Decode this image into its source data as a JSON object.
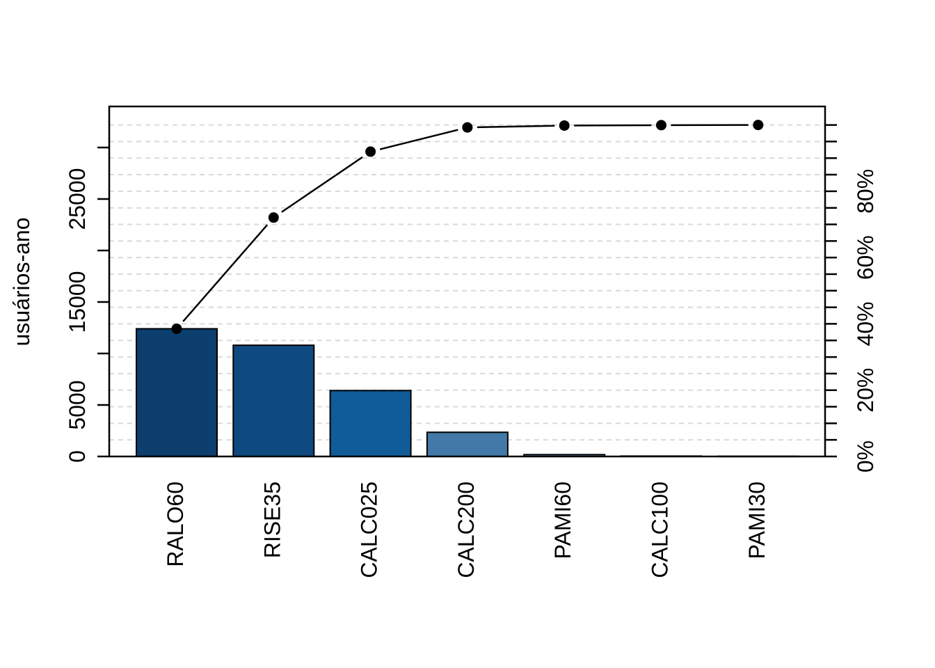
{
  "chart_data": {
    "type": "bar",
    "subtype": "pareto-chart-with-cumulative-line",
    "title": "",
    "xlabel": "",
    "ylabel": "usuários-ano",
    "categories": [
      "RALO60",
      "RISE35",
      "CALC025",
      "CALC200",
      "PAMI60",
      "CALC100",
      "PAMI30"
    ],
    "series": [
      {
        "name": "usuários-ano",
        "type": "bar",
        "values": [
          12400,
          10800,
          6400,
          2350,
          180,
          40,
          20
        ]
      },
      {
        "name": "cumulative-percentage",
        "type": "line",
        "values": [
          38.5,
          72.1,
          92.0,
          99.3,
          99.8,
          99.9,
          100.0
        ]
      }
    ],
    "values": [
      12400,
      10800,
      6400,
      2350,
      180,
      40,
      20
    ],
    "cumulative_percent": [
      38.5,
      72.1,
      92.0,
      99.3,
      99.8,
      99.9,
      100.0
    ],
    "left_axis": {
      "label": "usuários-ano",
      "tick_values": [
        0,
        5000,
        10000,
        15000,
        20000,
        25000,
        30000
      ],
      "tick_labels": [
        "0",
        "5000",
        "",
        "15000",
        "",
        "25000",
        ""
      ],
      "unit_per_tick": 5000,
      "range": [
        0,
        33500
      ]
    },
    "right_axis": {
      "label": "",
      "tick_percent_step": 5,
      "tick_percent_min": 0,
      "tick_percent_max": 100,
      "labeled_tick_percents": [
        0,
        20,
        40,
        60,
        80
      ],
      "tick_labels": [
        "0%",
        "20%",
        "40%",
        "60%",
        "80%"
      ]
    },
    "grid": true,
    "grid_style": "dashed-horizontal-every-5-percent",
    "legend_position": "none",
    "colors": {
      "bars": [
        "#0c3e6e",
        "#0e4a80",
        "#0f5c99",
        "#4379a8",
        "#7da0c0",
        "#b3c8db",
        "#dde8f1"
      ],
      "bar_border": "#000000",
      "line": "#000000",
      "point": "#000000",
      "grid": "#d9d9d9",
      "frame": "#000000",
      "background": "#ffffff"
    }
  }
}
